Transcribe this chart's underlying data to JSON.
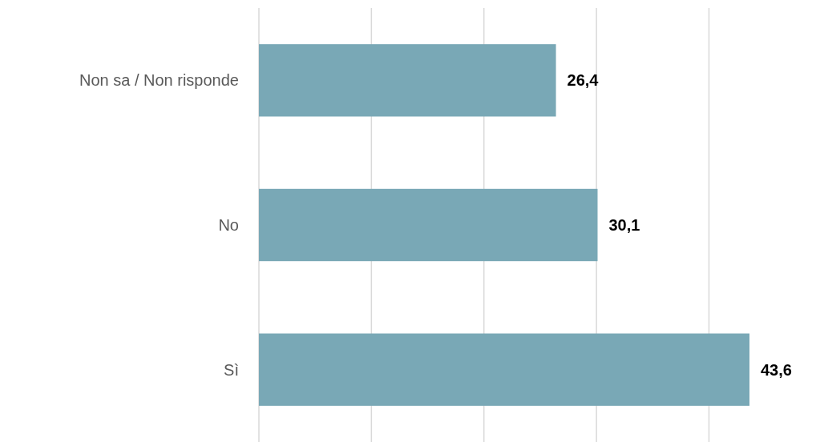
{
  "chart_data": {
    "type": "bar",
    "orientation": "horizontal",
    "categories": [
      "Non sa / Non risponde",
      "No",
      "Sì"
    ],
    "values": [
      26.4,
      30.1,
      43.6
    ],
    "value_labels": [
      "26,4",
      "30,1",
      "43,6"
    ],
    "color": "#79a8b6",
    "xticks": [
      {
        "value": 0,
        "label": null
      },
      {
        "value": 10,
        "label": null
      },
      {
        "value": 20,
        "label": null
      },
      {
        "value": 30,
        "label": null
      },
      {
        "value": 40,
        "label": null
      }
    ],
    "grid": "x",
    "tick_labels": "y"
  }
}
